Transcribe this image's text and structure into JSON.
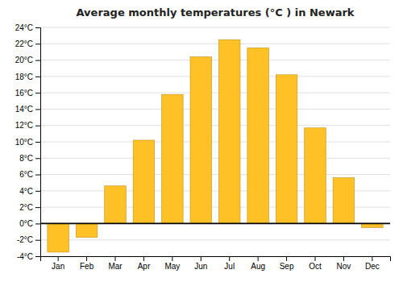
{
  "chart_data": {
    "type": "bar",
    "title": "Average monthly temperatures (°C ) in Newark",
    "categories": [
      "Jan",
      "Feb",
      "Mar",
      "Apr",
      "May",
      "Jun",
      "Jul",
      "Aug",
      "Sep",
      "Oct",
      "Nov",
      "Dec"
    ],
    "values": [
      -3.5,
      -1.7,
      4.6,
      10.2,
      15.8,
      20.4,
      22.5,
      21.5,
      18.2,
      11.7,
      5.6,
      -0.5
    ],
    "color": "#FFC125",
    "ylim": [
      -4,
      24
    ],
    "yticks": [
      {
        "value": -4,
        "label": "-4°C"
      },
      {
        "value": -2,
        "label": "-2°C"
      },
      {
        "value": 0,
        "label": "0°C"
      },
      {
        "value": 2,
        "label": "2°C"
      },
      {
        "value": 4,
        "label": "4°C"
      },
      {
        "value": 6,
        "label": "6°C"
      },
      {
        "value": 8,
        "label": "8°C"
      },
      {
        "value": 10,
        "label": "10°C"
      },
      {
        "value": 12,
        "label": "12°C"
      },
      {
        "value": 14,
        "label": "14°C"
      },
      {
        "value": 16,
        "label": "16°C"
      },
      {
        "value": 18,
        "label": "18°C"
      },
      {
        "value": 20,
        "label": "20°C"
      },
      {
        "value": 22,
        "label": "22°C"
      },
      {
        "value": 24,
        "label": "24°C"
      }
    ],
    "grid": true
  }
}
